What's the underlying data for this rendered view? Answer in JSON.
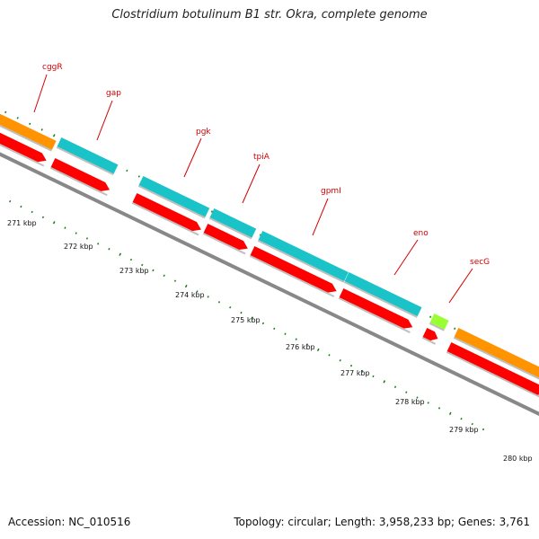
{
  "title": "Clostridium botulinum B1 str. Okra, complete genome",
  "footer": {
    "accession": "Accession: NC_010516",
    "stats": "Topology: circular; Length: 3,958,233 bp; Genes: 3,761"
  },
  "colors": {
    "cds_forward": "#19c3c8",
    "cds_red": "#ff0000",
    "orange_feature": "#ff9400",
    "green_feature": "#99ff33",
    "backbone": "#888888",
    "ticks": "#1a7a1a",
    "label": "#d40000"
  },
  "genes": [
    "cggR",
    "gap",
    "pgk",
    "tpiA",
    "gpmI",
    "eno",
    "secG"
  ],
  "kbp_labels": [
    "271 kbp",
    "272 kbp",
    "273 kbp",
    "274 kbp",
    "275 kbp",
    "276 kbp",
    "277 kbp",
    "278 kbp",
    "279 kbp",
    "280 kbp"
  ]
}
